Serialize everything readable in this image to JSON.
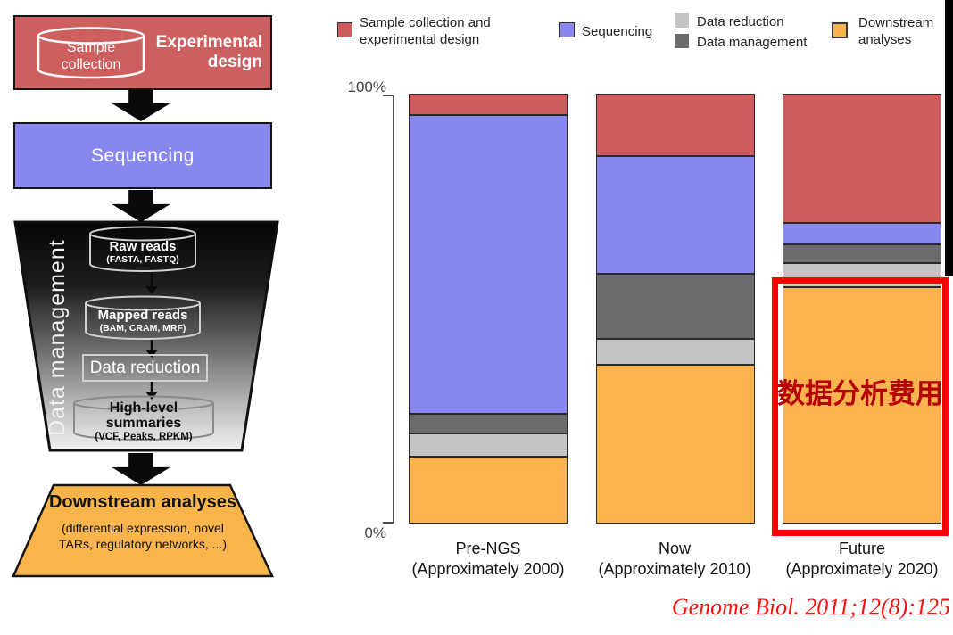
{
  "flowchart": {
    "experimental_design_label": "Experimental design",
    "sample_collection_label": "Sample collection",
    "sequencing_label": "Sequencing",
    "data_management_label": "Data management",
    "raw_reads": {
      "title": "Raw reads",
      "formats": "(FASTA, FASTQ)"
    },
    "mapped_reads": {
      "title": "Mapped reads",
      "formats": "(BAM, CRAM, MRF)"
    },
    "data_reduction_label": "Data reduction",
    "high_level_summaries": {
      "title": "High-level summaries",
      "formats": "(VCF, Peaks, RPKM)"
    },
    "downstream": {
      "title": "Downstream analyses",
      "subtitle": "(differential expression, novel TARs, regulatory networks, ...)"
    },
    "colors": {
      "experimental_design_fill": "#CD5F5F",
      "sequencing_fill": "#8888EE",
      "funnel_gradient": [
        "#050505",
        "#f0f0f0"
      ],
      "downstream_fill": "#F9B44C"
    }
  },
  "legend": {
    "items": [
      {
        "label": "Sample collection and experimental design",
        "color": "#CD5C5C"
      },
      {
        "label": "Sequencing",
        "color": "#8888EE"
      },
      {
        "label": "Data reduction",
        "color": "#C4C4C4"
      },
      {
        "label": "Data management",
        "color": "#6B6B6B"
      },
      {
        "label": "Downstream analyses",
        "color": "#FAB34F"
      }
    ]
  },
  "chart_data": {
    "type": "bar",
    "stacked": true,
    "stack_order": "top-to-bottom",
    "unit": "percent of total sequencing-project cost",
    "categories": [
      {
        "name": "Pre-NGS",
        "period": "(Approximately 2000)"
      },
      {
        "name": "Now",
        "period": "(Approximately 2010)"
      },
      {
        "name": "Future",
        "period": "(Approximately 2020)"
      }
    ],
    "series": [
      {
        "name": "Sample collection and experimental design",
        "color": "#CD5C5C",
        "values": [
          5,
          14.5,
          30
        ]
      },
      {
        "name": "Sequencing",
        "color": "#8888EE",
        "values": [
          69.5,
          27.5,
          5
        ]
      },
      {
        "name": "Data management",
        "color": "#6B6B6B",
        "values": [
          4.5,
          15,
          4.5
        ]
      },
      {
        "name": "Data reduction",
        "color": "#C4C4C4",
        "values": [
          5.5,
          6,
          5.5
        ]
      },
      {
        "name": "Downstream analyses",
        "color": "#FAB34F",
        "values": [
          15.5,
          37,
          55
        ]
      }
    ],
    "ylim": [
      0,
      100
    ],
    "yaxis_ticks": {
      "top": "100%",
      "bottom": "0%"
    },
    "grid": false,
    "legend_position": "top"
  },
  "annotation": {
    "text": "数据分析费用",
    "text_color": "#B50000",
    "box_color": "#FE0000"
  },
  "citation": "Genome Biol. 2011;12(8):125"
}
